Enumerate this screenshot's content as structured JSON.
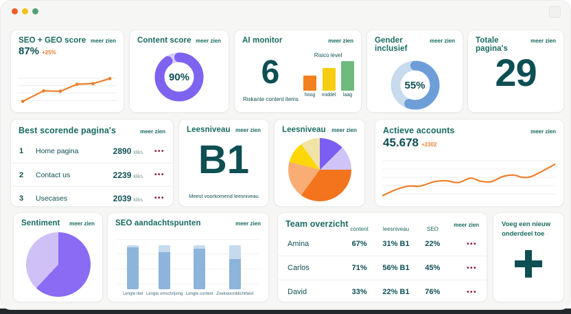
{
  "ui": {
    "dots": "•••"
  },
  "window": {
    "traffic_lights": [
      {
        "name": "close",
        "color": "#f25c2a"
      },
      {
        "name": "minimize",
        "color": "#f5c21b"
      },
      {
        "name": "zoom",
        "color": "#55a077"
      }
    ]
  },
  "cards": {
    "seo_geo": {
      "title": "SEO + GEO score",
      "link": "meer zien",
      "value": "87%",
      "delta": "+25%",
      "chart": {
        "type": "line",
        "x": [
          5,
          26,
          43,
          60,
          76,
          93
        ],
        "y": [
          12,
          45,
          44,
          66,
          68,
          84
        ],
        "color": "#f07d2b"
      }
    },
    "content_score": {
      "title": "Content score",
      "link": "meer zien",
      "percent": 90,
      "label": "90%",
      "color": "#7d63ef",
      "track": "#d7ccf9"
    },
    "ai_monitor": {
      "title": "AI monitor",
      "link": "meer zien",
      "value": "6",
      "caption": "Riskante content items",
      "chart_title": "Risico level",
      "bars": [
        {
          "label": "hoog",
          "value": 25,
          "color": "#f2801f"
        },
        {
          "label": "middel",
          "value": 38,
          "color": "#f6cd11"
        },
        {
          "label": "laag",
          "value": 50,
          "color": "#6fba7d"
        }
      ]
    },
    "gender": {
      "title": "Gender inclusief",
      "link": "meer zien",
      "percent": 55,
      "label": "55%",
      "color": "#6d9ed8",
      "track": "#c8dbee"
    },
    "total_pages": {
      "title": "Totale pagina's",
      "link": "meer zien",
      "value": "29"
    },
    "best_pages": {
      "title": "Best scorende pagina's",
      "link": "meer zien",
      "unit": "kliks",
      "rows": [
        {
          "rank": "1",
          "name": "Home pagina",
          "value": "2890"
        },
        {
          "rank": "2",
          "name": "Contact us",
          "value": "2239"
        },
        {
          "rank": "3",
          "name": "Usecases",
          "value": "2039"
        }
      ]
    },
    "leesniveau_level": {
      "title": "Leesniveau",
      "link": "meer zien",
      "value": "B1",
      "caption": "Meest voorkomend leesniveau"
    },
    "leesniveau_pie": {
      "title": "Leesniveau",
      "link": "meer zien",
      "slices": [
        {
          "label": "slice-purple",
          "pct": 12.5,
          "color": "#7b5ef2"
        },
        {
          "label": "slice-lavender",
          "pct": 12.5,
          "color": "#cfc3f7"
        },
        {
          "label": "slice-orange",
          "pct": 35,
          "color": "#f4731d"
        },
        {
          "label": "slice-peach",
          "pct": 19,
          "color": "#f9ad74"
        },
        {
          "label": "slice-yellow",
          "pct": 11,
          "color": "#ffd60a"
        },
        {
          "label": "slice-cream",
          "pct": 10,
          "color": "#f1e3a6"
        }
      ]
    },
    "active_accounts": {
      "title": "Actieve accounts",
      "link": "meer zien",
      "value": "45.678",
      "delta": "+2302",
      "chart": {
        "type": "line-smooth",
        "color": "#f07d2b",
        "points": [
          [
            0,
            8
          ],
          [
            8,
            22
          ],
          [
            15,
            30
          ],
          [
            22,
            30
          ],
          [
            30,
            40
          ],
          [
            37,
            42
          ],
          [
            44,
            38
          ],
          [
            51,
            48
          ],
          [
            57,
            41
          ],
          [
            63,
            40
          ],
          [
            70,
            52
          ],
          [
            76,
            55
          ],
          [
            81,
            50
          ],
          [
            87,
            53
          ],
          [
            100,
            80
          ]
        ]
      }
    },
    "sentiment": {
      "title": "Sentiment",
      "link": "meer zien",
      "slices": [
        {
          "label": "slice-purple",
          "pct": 62,
          "color": "#8a6cf4"
        },
        {
          "label": "slice-lavender",
          "pct": 38,
          "color": "#cfc0f6"
        }
      ]
    },
    "seo_points": {
      "title": "SEO aandachtspunten",
      "link": "meer zien",
      "fill_color": "#8db4db",
      "track_color": "#c6daee",
      "bars": [
        {
          "label": "Lengte titel",
          "fill": 95
        },
        {
          "label": "Lengte omschrijving",
          "fill": 85
        },
        {
          "label": "Lengte content",
          "fill": 92
        },
        {
          "label": "Zoekwoorddichtheid",
          "fill": 69
        }
      ]
    },
    "team": {
      "title": "Team overzicht",
      "link": "meer zien",
      "columns": [
        "content",
        "leesniveau",
        "SEO"
      ],
      "rows": [
        {
          "name": "Amina",
          "content": "67%",
          "leesniveau": "31% B1",
          "seo": "22%"
        },
        {
          "name": "Carlos",
          "content": "71%",
          "leesniveau": "56% B1",
          "seo": "45%"
        },
        {
          "name": "David",
          "content": "33%",
          "leesniveau": "22% B1",
          "seo": "76%"
        }
      ]
    },
    "add_card": {
      "title": "Voeg een nieuw onderdeel toe"
    }
  }
}
